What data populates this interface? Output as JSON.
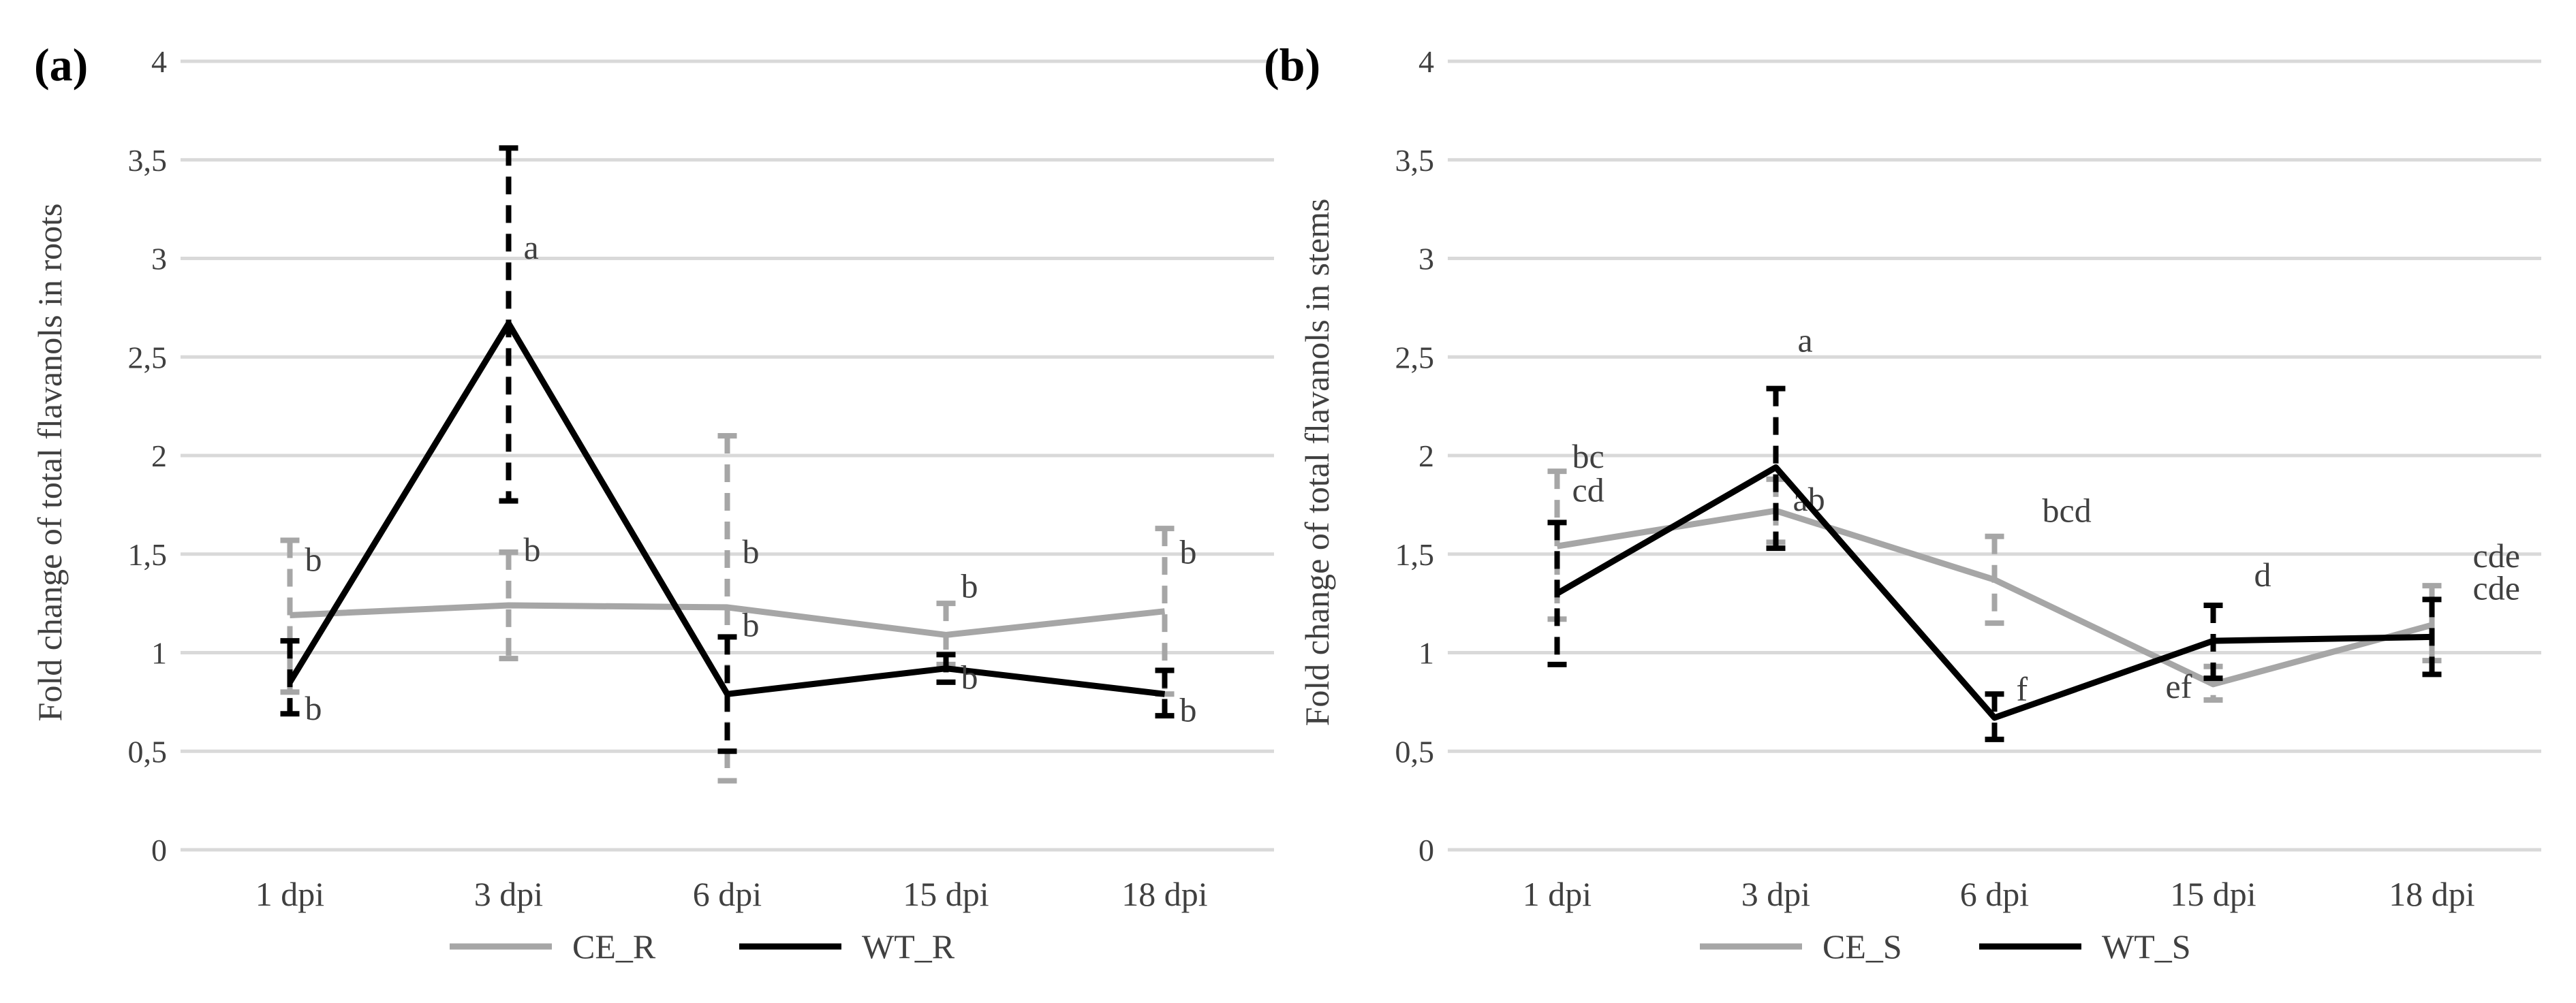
{
  "chart_data": [
    {
      "panel_label": "(a)",
      "type": "line",
      "ylabel": "Fold change of total flavanols in roots",
      "xlabel": "",
      "categories": [
        "1 dpi",
        "3 dpi",
        "6 dpi",
        "15 dpi",
        "18 dpi"
      ],
      "ylim": [
        0,
        4
      ],
      "y_ticks": [
        "0",
        "0,5",
        "1",
        "1,5",
        "2",
        "2,5",
        "3",
        "3,5",
        "4"
      ],
      "y_tick_values": [
        0,
        0.5,
        1,
        1.5,
        2,
        2.5,
        3,
        3.5,
        4
      ],
      "grid": true,
      "legend": "bottom",
      "series": [
        {
          "name": "CE_R",
          "color": "#a6a6a6",
          "values": [
            1.19,
            1.24,
            1.23,
            1.09,
            1.21
          ],
          "error_low": [
            0.8,
            0.97,
            0.35,
            0.94,
            0.79
          ],
          "error_high": [
            1.57,
            1.51,
            2.1,
            1.25,
            1.63
          ],
          "letters": [
            "b",
            "b",
            "b",
            "b",
            "b"
          ]
        },
        {
          "name": "WT_R",
          "color": "#000000",
          "values": [
            0.85,
            2.67,
            0.79,
            0.92,
            0.79
          ],
          "error_low": [
            0.69,
            1.77,
            0.5,
            0.85,
            0.68
          ],
          "error_high": [
            1.06,
            3.56,
            1.08,
            0.99,
            0.91
          ],
          "letters": [
            "b",
            "a",
            "b",
            "b",
            "b"
          ]
        }
      ]
    },
    {
      "panel_label": "(b)",
      "type": "line",
      "ylabel": "Fold change of total flavanols in stems",
      "xlabel": "",
      "categories": [
        "1 dpi",
        "3 dpi",
        "6 dpi",
        "15 dpi",
        "18 dpi"
      ],
      "ylim": [
        0,
        4
      ],
      "y_ticks": [
        "0",
        "0,5",
        "1",
        "1,5",
        "2",
        "2,5",
        "3",
        "3,5",
        "4"
      ],
      "y_tick_values": [
        0,
        0.5,
        1,
        1.5,
        2,
        2.5,
        3,
        3.5,
        4
      ],
      "grid": true,
      "legend": "bottom",
      "series": [
        {
          "name": "CE_S",
          "color": "#a6a6a6",
          "values": [
            1.54,
            1.72,
            1.37,
            0.84,
            1.14
          ],
          "error_low": [
            1.17,
            1.56,
            1.15,
            0.76,
            0.96
          ],
          "error_high": [
            1.92,
            1.88,
            1.59,
            0.93,
            1.34
          ],
          "letters": [
            "bc",
            "ab",
            "bcd",
            "ef",
            "cde"
          ]
        },
        {
          "name": "WT_S",
          "color": "#000000",
          "values": [
            1.3,
            1.94,
            0.67,
            1.06,
            1.08
          ],
          "error_low": [
            0.94,
            1.53,
            0.56,
            0.87,
            0.89
          ],
          "error_high": [
            1.66,
            2.34,
            0.79,
            1.24,
            1.27
          ],
          "letters": [
            "cd",
            "a",
            "f",
            "d",
            "cde"
          ]
        }
      ]
    }
  ]
}
